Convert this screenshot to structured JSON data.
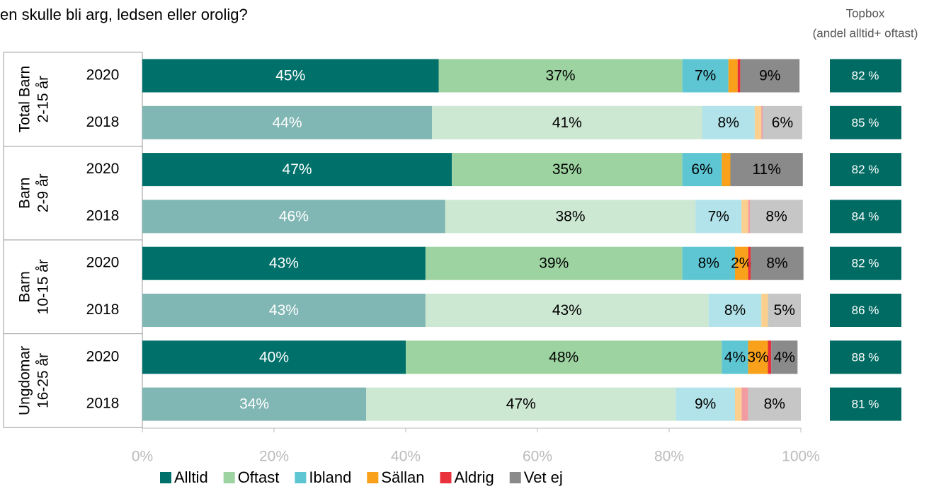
{
  "chart_data": {
    "type": "bar",
    "orientation": "horizontal",
    "stacked": true,
    "title": "en skulle bli arg, ledsen eller orolig?",
    "categories": [
      "2020",
      "2018",
      "2020",
      "2018",
      "2020",
      "2018",
      "2020",
      "2018"
    ],
    "groups": [
      [
        "Total Barn",
        "2-15 år"
      ],
      [
        "Barn",
        "2-9 år"
      ],
      [
        "Barn",
        "10-15 år"
      ],
      [
        "Ungdomar",
        "16-25 år"
      ]
    ],
    "series": [
      {
        "name": "Alltid",
        "color": "#00706a",
        "light_color": "#80b6b3",
        "values": [
          45,
          44,
          47,
          46,
          43,
          43,
          40,
          34
        ],
        "value_labels": [
          "45%",
          "44%",
          "47%",
          "46%",
          "43%",
          "43%",
          "40%",
          "34%"
        ]
      },
      {
        "name": "Oftast",
        "color": "#9dd3a1",
        "light_color": "#cde8d2",
        "values": [
          37,
          41,
          35,
          38,
          39,
          43,
          48,
          47
        ],
        "value_labels": [
          "37%",
          "41%",
          "35%",
          "38%",
          "39%",
          "43%",
          "48%",
          "47%"
        ]
      },
      {
        "name": "Ibland",
        "color": "#5ec6d3",
        "light_color": "#b3e3ea",
        "values": [
          7,
          8,
          6,
          7,
          8,
          8,
          4,
          9
        ],
        "value_labels": [
          "7%",
          "8%",
          "6%",
          "7%",
          "8%",
          "8%",
          "4%",
          "9%"
        ]
      },
      {
        "name": "Sällan",
        "color": "#f9a11b",
        "light_color": "#fbcf8d",
        "values": [
          1.4,
          1.0,
          1.3,
          1.0,
          2,
          1.0,
          3,
          1.0
        ],
        "value_labels": [
          null,
          null,
          null,
          null,
          "2%",
          null,
          "3%",
          null
        ]
      },
      {
        "name": "Aldrig",
        "color": "#e8313b",
        "light_color": "#f19ca1",
        "values": [
          0.4,
          0.2,
          0,
          0.3,
          0.4,
          0,
          0.5,
          1.0
        ],
        "value_labels": [
          null,
          null,
          null,
          null,
          null,
          null,
          null,
          null
        ]
      },
      {
        "name": "Vet ej",
        "color": "#8a8a8a",
        "light_color": "#c6c6c6",
        "values": [
          9,
          6,
          11,
          8,
          8,
          5,
          4,
          8
        ],
        "value_labels": [
          "9%",
          "6%",
          "11%",
          "8%",
          "8%",
          "5%",
          "4%",
          "8%"
        ]
      }
    ],
    "xlim": [
      0,
      100
    ],
    "xticks": [
      {
        "value": 0,
        "label": "0%"
      },
      {
        "value": 20,
        "label": "20%"
      },
      {
        "value": 40,
        "label": "40%"
      },
      {
        "value": 60,
        "label": "60%"
      },
      {
        "value": 80,
        "label": "80%"
      },
      {
        "value": 100,
        "label": "100%"
      }
    ],
    "legend": "bottom",
    "topbox": {
      "title": "Topbox",
      "subtitle": "(andel alltid+ oftast)",
      "color": "#006b63",
      "values": [
        82,
        85,
        82,
        84,
        82,
        86,
        88,
        81
      ],
      "value_labels": [
        "82 %",
        "85 %",
        "82 %",
        "84 %",
        "82 %",
        "86 %",
        "88 %",
        "81 %"
      ]
    }
  }
}
